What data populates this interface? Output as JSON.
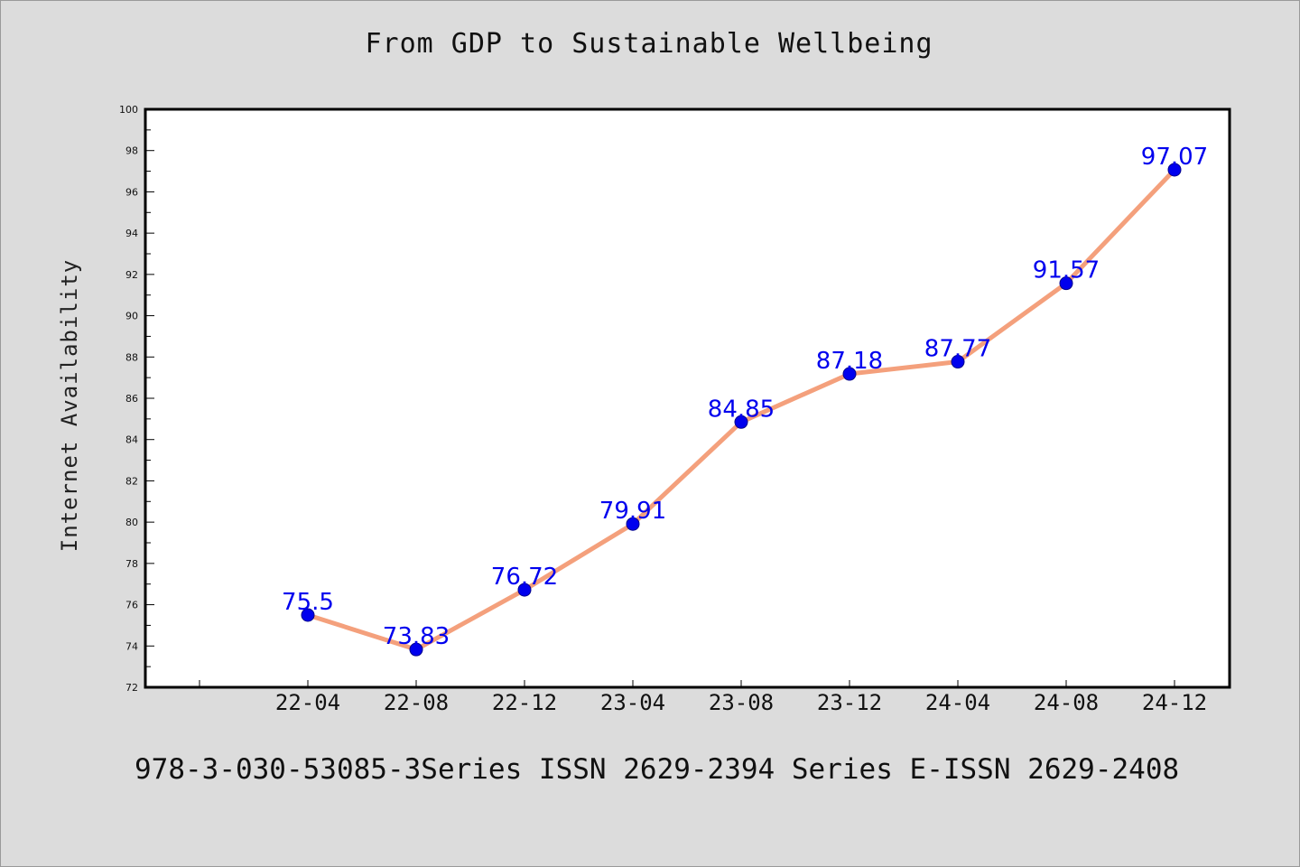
{
  "chart_data": {
    "type": "line",
    "title": "From GDP to Sustainable Wellbeing",
    "xlabel": "",
    "ylabel": "Internet Availability",
    "categories": [
      "22-04",
      "22-08",
      "22-12",
      "23-04",
      "23-08",
      "23-12",
      "24-04",
      "24-08",
      "24-12"
    ],
    "series": [
      {
        "values": [
          75.5,
          73.83,
          76.72,
          79.91,
          84.85,
          87.18,
          87.77,
          91.57,
          97.07
        ]
      }
    ],
    "data_labels": [
      "75.5",
      "73.83",
      "76.72",
      "79.91",
      "84.85",
      "87.18",
      "87.77",
      "91.57",
      "97.07"
    ],
    "ylim": [
      72,
      100
    ],
    "y_ticks": [
      72,
      74,
      76,
      78,
      80,
      82,
      84,
      86,
      88,
      90,
      92,
      94,
      96,
      98,
      100
    ],
    "grid": false,
    "legend": "none",
    "colors": {
      "line": "#f4a07c",
      "marker": "#0000ee",
      "label": "#0000ee",
      "axis": "#000000",
      "plot_bg": "#ffffff",
      "page_bg": "#dcdcdc"
    }
  },
  "footer": {
    "text": "978-3-030-53085-3Series ISSN 2629-2394 Series E-ISSN 2629-2408"
  }
}
